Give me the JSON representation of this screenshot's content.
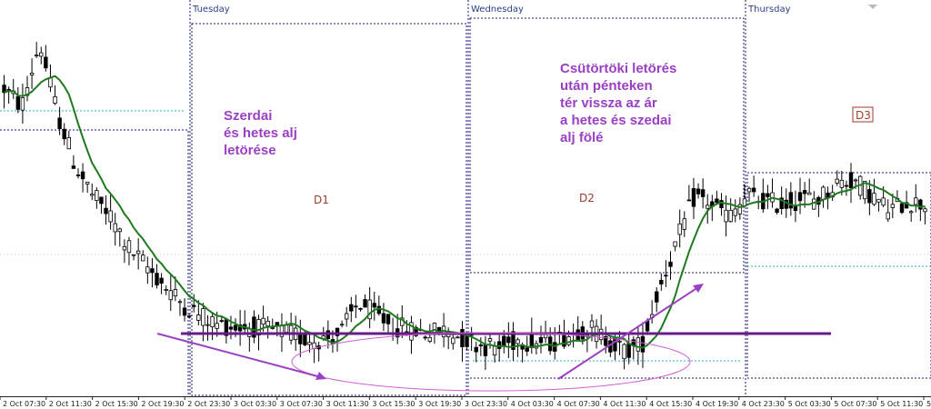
{
  "window": {
    "background": "#ffffff",
    "colors": {
      "candle": "#000000",
      "ma": "#1f7a1f",
      "day_separator": "#1a1a7a",
      "level_box": "#1a1a7a",
      "cyan_level": "#2bb0b0",
      "support_line": "#6a1b8a",
      "annotation": "#9b3fc4",
      "ellipse": "#cf5fd0",
      "arrow": "#9b3fc4",
      "d_label": "#9a3b2e"
    }
  },
  "chart_data": {
    "type": "candlestick",
    "timeframe_hint": "M30",
    "days": [
      {
        "name": "Tuesday",
        "tick": "2 Oct 23:30"
      },
      {
        "name": "Wednesday",
        "tick": "3 Oct 23:30"
      },
      {
        "name": "Thursday",
        "tick": "4 Oct 23:30"
      }
    ],
    "x_ticks": [
      "2 Oct 07:30",
      "2 Oct 11:30",
      "2 Oct 15:30",
      "2 Oct 19:30",
      "2 Oct 23:30",
      "3 Oct 03:30",
      "3 Oct 07:30",
      "3 Oct 11:30",
      "3 Oct 15:30",
      "3 Oct 19:30",
      "3 Oct 23:30",
      "4 Oct 03:30",
      "4 Oct 07:30",
      "4 Oct 11:30",
      "4 Oct 15:30",
      "4 Oct 19:30",
      "4 Oct 23:30",
      "5 Oct 03:30",
      "5 Oct 07:30",
      "5 Oct 11:30",
      "5"
    ],
    "day_boxes": [
      {
        "label": "D1",
        "day": "Tuesday"
      },
      {
        "label": "D2",
        "day": "Wednesday"
      },
      {
        "label": "D3",
        "day": "Thursday"
      }
    ],
    "annotations": [
      {
        "name": "wednesday-break-note",
        "lines": [
          "Szerdai",
          "és hetes alj",
          "letörése"
        ]
      },
      {
        "name": "thursday-break-note",
        "lines": [
          "Csütörtöki letörés",
          "után pénteken",
          "tér vissza az ár",
          "a hetes és szedai",
          "alj fölé"
        ]
      }
    ],
    "series_profile": [
      0.8,
      0.74,
      0.95,
      0.72,
      0.55,
      0.45,
      0.38,
      0.28,
      0.22,
      0.16,
      0.1,
      0.06,
      0.03,
      0.02,
      0.02,
      0.01,
      0.0,
      -0.02,
      -0.02,
      0.0,
      0.1,
      0.06,
      0.02,
      0.01,
      0.0,
      0.01,
      -0.02,
      -0.04,
      -0.05,
      -0.02,
      -0.03,
      -0.03,
      0.0,
      0.02,
      -0.02,
      -0.06,
      -0.04,
      0.15,
      0.3,
      0.45,
      0.42,
      0.38,
      0.45,
      0.43,
      0.42,
      0.44,
      0.44,
      0.49,
      0.5,
      0.45,
      0.4,
      0.43,
      0.42
    ]
  }
}
